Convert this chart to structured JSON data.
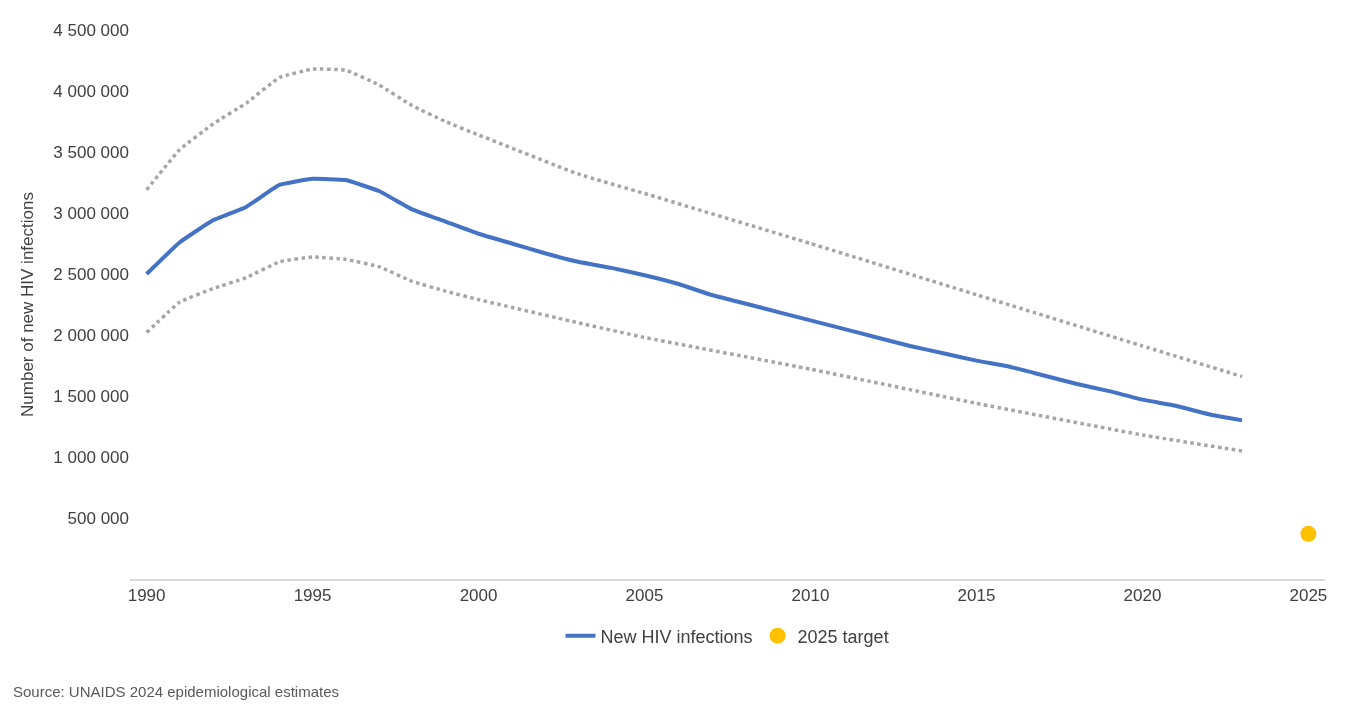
{
  "chart_data": {
    "type": "line",
    "ylabel": "Number of new HIV infections",
    "xlim": [
      1989.5,
      2025.5
    ],
    "xticks": [
      1990,
      1995,
      2000,
      2005,
      2010,
      2015,
      2020,
      2025
    ],
    "ylim": [
      0,
      4500000
    ],
    "yticks": [
      {
        "value": 500000,
        "label": "500 000"
      },
      {
        "value": 1000000,
        "label": "1 000 000"
      },
      {
        "value": 1500000,
        "label": "1 500 000"
      },
      {
        "value": 2000000,
        "label": "2 000 000"
      },
      {
        "value": 2500000,
        "label": "2 500 000"
      },
      {
        "value": 3000000,
        "label": "3 000 000"
      },
      {
        "value": 3500000,
        "label": "3 500 000"
      },
      {
        "value": 4000000,
        "label": "4 000 000"
      },
      {
        "value": 4500000,
        "label": "4 500 000"
      }
    ],
    "legend": "bottom",
    "series": [
      {
        "name": "New HIV infections",
        "color": "#4472c4",
        "line_style": "solid",
        "marker": "none",
        "x": [
          1990,
          1991,
          1992,
          1993,
          1994,
          1995,
          1996,
          1997,
          1998,
          1999,
          2000,
          2001,
          2002,
          2003,
          2004,
          2005,
          2006,
          2007,
          2008,
          2009,
          2010,
          2011,
          2012,
          2013,
          2014,
          2015,
          2016,
          2017,
          2018,
          2019,
          2020,
          2021,
          2022,
          2023
        ],
        "values": [
          2500000,
          2760000,
          2940000,
          3050000,
          3230000,
          3280000,
          3270000,
          3180000,
          3030000,
          2930000,
          2830000,
          2750000,
          2670000,
          2600000,
          2550000,
          2490000,
          2420000,
          2330000,
          2260000,
          2190000,
          2120000,
          2050000,
          1980000,
          1910000,
          1850000,
          1790000,
          1740000,
          1670000,
          1600000,
          1540000,
          1470000,
          1420000,
          1350000,
          1300000
        ]
      },
      {
        "color": "#a5a5a5",
        "line_style": "dotted",
        "marker": "none",
        "x": [
          1990,
          1991,
          1992,
          1993,
          1994,
          1995,
          1996,
          1997,
          1998,
          1999,
          2000,
          2003,
          2005,
          2010,
          2015,
          2020,
          2023
        ],
        "values": [
          3190000,
          3520000,
          3730000,
          3900000,
          4110000,
          4180000,
          4170000,
          4050000,
          3880000,
          3750000,
          3640000,
          3320000,
          3160000,
          2750000,
          2330000,
          1910000,
          1660000
        ]
      },
      {
        "color": "#a5a5a5",
        "line_style": "dotted",
        "marker": "none",
        "x": [
          1990,
          1991,
          1992,
          1993,
          1994,
          1995,
          1996,
          1997,
          1998,
          1999,
          2000,
          2003,
          2005,
          2010,
          2015,
          2020,
          2023
        ],
        "values": [
          2020000,
          2270000,
          2380000,
          2470000,
          2600000,
          2640000,
          2620000,
          2560000,
          2440000,
          2360000,
          2290000,
          2100000,
          1980000,
          1720000,
          1440000,
          1180000,
          1050000
        ]
      },
      {
        "name": "2025 target",
        "type": "scatter",
        "color": "#ffc000",
        "marker": "circle",
        "x": [
          2025
        ],
        "values": [
          370000
        ]
      }
    ],
    "annotations": [
      "Source: UNAIDS 2024 epidemiological estimates"
    ]
  }
}
